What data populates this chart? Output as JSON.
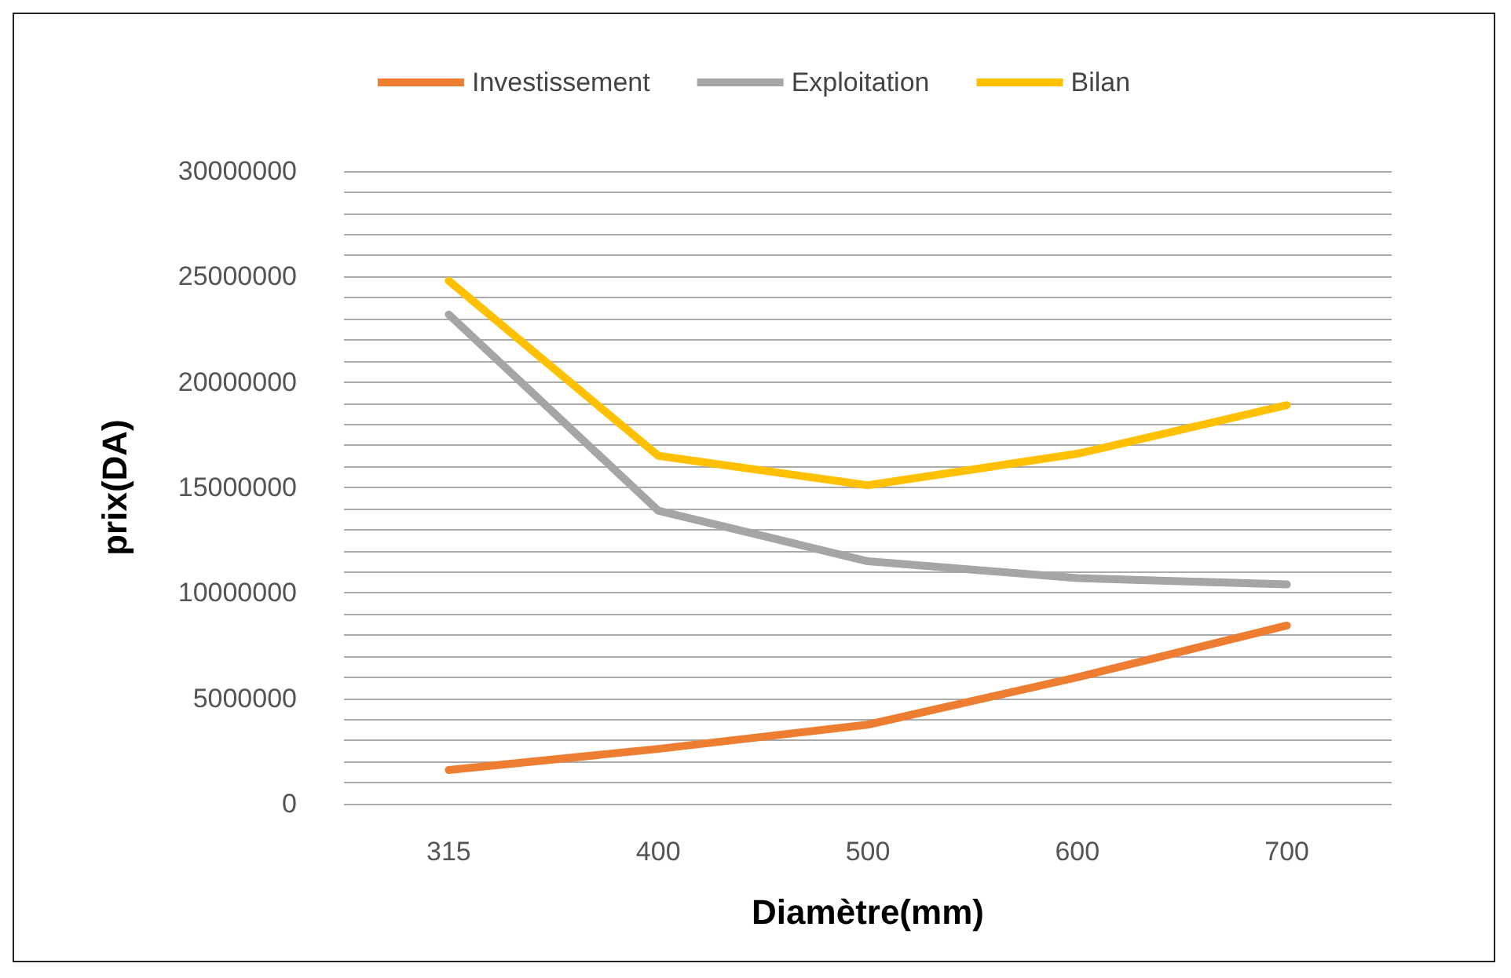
{
  "chart_data": {
    "type": "line",
    "xlabel": "Diamètre(mm)",
    "ylabel": "prix(DA)",
    "categories": [
      "315",
      "400",
      "500",
      "600",
      "700"
    ],
    "series": [
      {
        "name": "Investissement",
        "color": "#ed7d31",
        "values": [
          1600000,
          2600000,
          3750000,
          6000000,
          8450000
        ]
      },
      {
        "name": "Exploitation",
        "color": "#a5a5a5",
        "values": [
          23200000,
          13900000,
          11500000,
          10700000,
          10400000
        ]
      },
      {
        "name": "Bilan",
        "color": "#ffc000",
        "values": [
          24800000,
          16500000,
          15100000,
          16600000,
          18900000
        ]
      }
    ],
    "ylim": [
      0,
      30000000
    ],
    "yticks": [
      0,
      {
        "value": 1000000,
        "label": null
      },
      {
        "value": 2000000,
        "label": null
      },
      {
        "value": 3000000,
        "label": null
      },
      {
        "value": 4000000,
        "label": null
      },
      5000000,
      {
        "value": 6000000,
        "label": null
      },
      {
        "value": 7000000,
        "label": null
      },
      {
        "value": 8000000,
        "label": null
      },
      {
        "value": 9000000,
        "label": null
      },
      10000000,
      {
        "value": 11000000,
        "label": null
      },
      {
        "value": 12000000,
        "label": null
      },
      {
        "value": 13000000,
        "label": null
      },
      {
        "value": 14000000,
        "label": null
      },
      15000000,
      {
        "value": 16000000,
        "label": null
      },
      {
        "value": 17000000,
        "label": null
      },
      {
        "value": 18000000,
        "label": null
      },
      {
        "value": 19000000,
        "label": null
      },
      20000000,
      {
        "value": 21000000,
        "label": null
      },
      {
        "value": 22000000,
        "label": null
      },
      {
        "value": 23000000,
        "label": null
      },
      {
        "value": 24000000,
        "label": null
      },
      25000000,
      {
        "value": 26000000,
        "label": null
      },
      {
        "value": 27000000,
        "label": null
      },
      {
        "value": 28000000,
        "label": null
      },
      {
        "value": 29000000,
        "label": null
      },
      30000000
    ],
    "grid": true,
    "legend": "top",
    "marker": "none",
    "line_style": "solid"
  }
}
